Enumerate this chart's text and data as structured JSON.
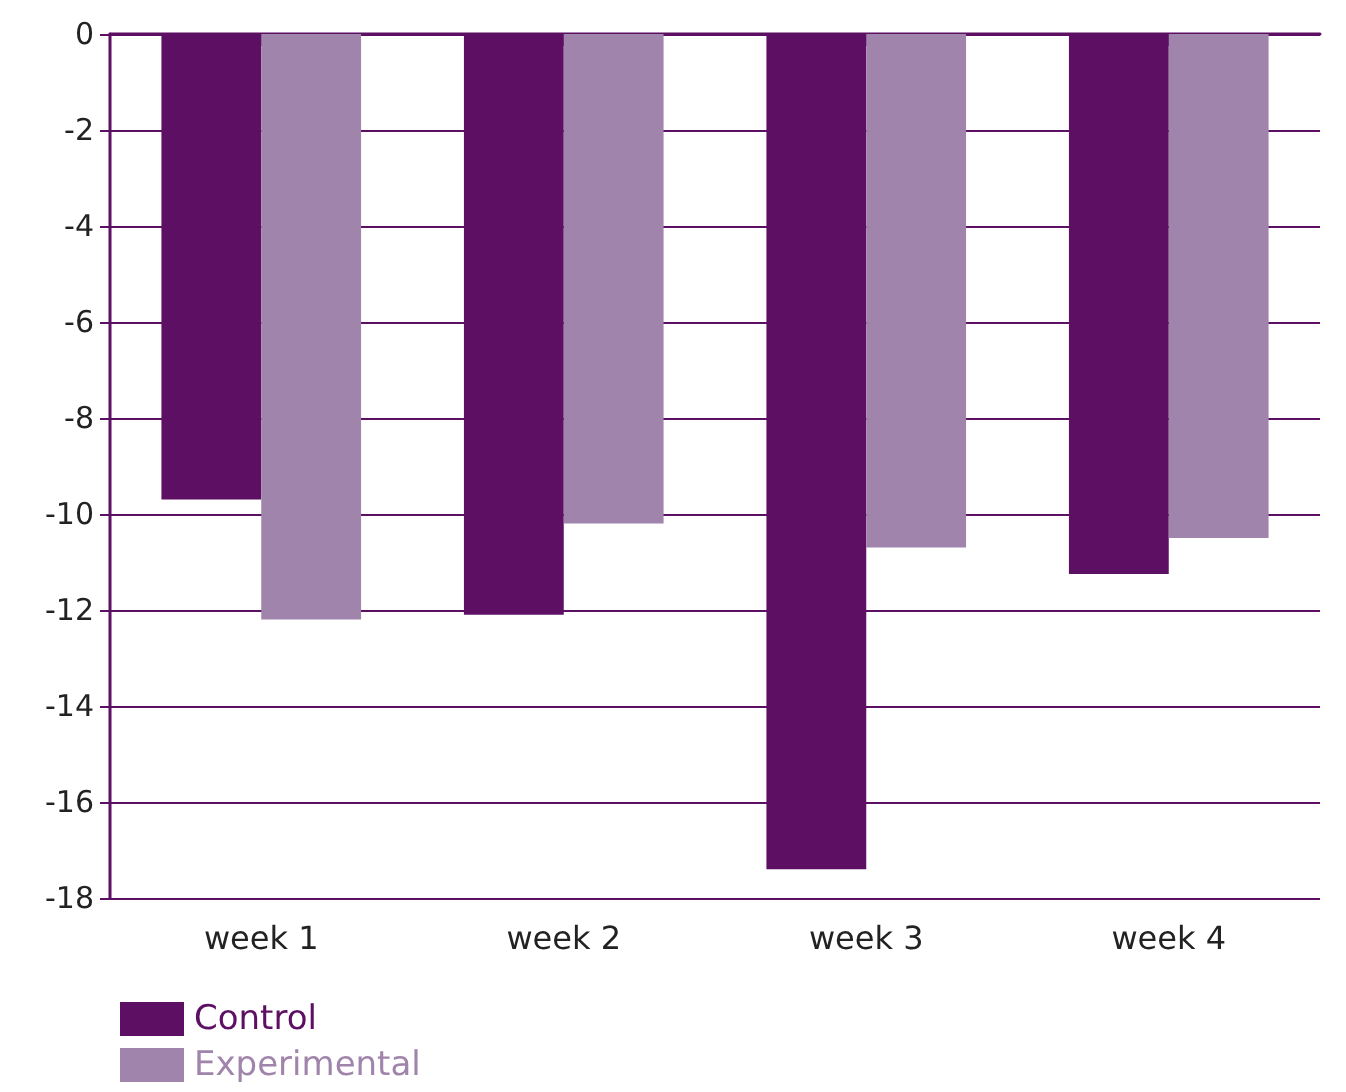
{
  "chart_data": {
    "type": "bar",
    "categories": [
      "week 1",
      "week 2",
      "week 3",
      "week 4"
    ],
    "series": [
      {
        "name": "Control",
        "color": "#5c0f63",
        "values": [
          -9.7,
          -12.1,
          -17.4,
          -11.25
        ]
      },
      {
        "name": "Experimental",
        "color": "#a084ab",
        "values": [
          -12.2,
          -10.2,
          -10.7,
          -10.5
        ]
      }
    ],
    "ylim": [
      -18,
      0
    ],
    "yticks": [
      -18,
      -16,
      -14,
      -12,
      -10,
      -8,
      -6,
      -4,
      -2,
      0
    ],
    "grid": "y",
    "legend": "bottom left"
  }
}
